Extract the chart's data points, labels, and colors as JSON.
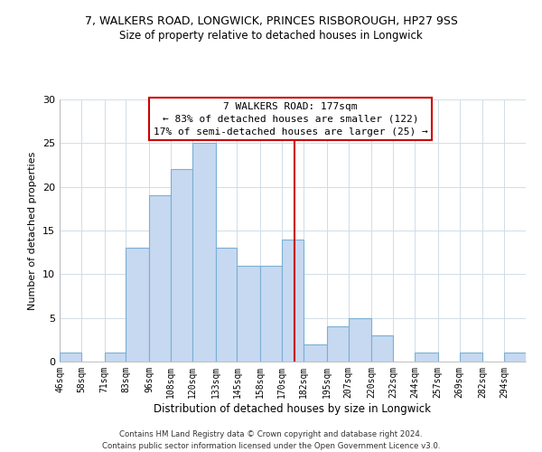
{
  "title_line1": "7, WALKERS ROAD, LONGWICK, PRINCES RISBOROUGH, HP27 9SS",
  "title_line2": "Size of property relative to detached houses in Longwick",
  "xlabel": "Distribution of detached houses by size in Longwick",
  "ylabel": "Number of detached properties",
  "bin_labels": [
    "46sqm",
    "58sqm",
    "71sqm",
    "83sqm",
    "96sqm",
    "108sqm",
    "120sqm",
    "133sqm",
    "145sqm",
    "158sqm",
    "170sqm",
    "182sqm",
    "195sqm",
    "207sqm",
    "220sqm",
    "232sqm",
    "244sqm",
    "257sqm",
    "269sqm",
    "282sqm",
    "294sqm"
  ],
  "bar_heights": [
    1,
    0,
    1,
    13,
    19,
    22,
    25,
    13,
    11,
    11,
    14,
    2,
    4,
    5,
    3,
    0,
    1,
    0,
    1,
    0,
    1
  ],
  "bar_color": "#c6d9f1",
  "bar_edge_color": "#7bafd4",
  "reference_line_x": 177,
  "reference_line_label": "7 WALKERS ROAD: 177sqm",
  "annotation_line1": "← 83% of detached houses are smaller (122)",
  "annotation_line2": "17% of semi-detached houses are larger (25) →",
  "annotation_box_color": "#ffffff",
  "annotation_box_edge": "#cc0000",
  "ref_line_color": "#cc0000",
  "ylim": [
    0,
    30
  ],
  "yticks": [
    0,
    5,
    10,
    15,
    20,
    25,
    30
  ],
  "footer_line1": "Contains HM Land Registry data © Crown copyright and database right 2024.",
  "footer_line2": "Contains public sector information licensed under the Open Government Licence v3.0.",
  "bin_edges": [
    46,
    58,
    71,
    83,
    96,
    108,
    120,
    133,
    145,
    158,
    170,
    182,
    195,
    207,
    220,
    232,
    244,
    257,
    269,
    282,
    294,
    306
  ],
  "grid_color": "#d0dde8",
  "title1_fontsize": 9,
  "title2_fontsize": 8.5
}
